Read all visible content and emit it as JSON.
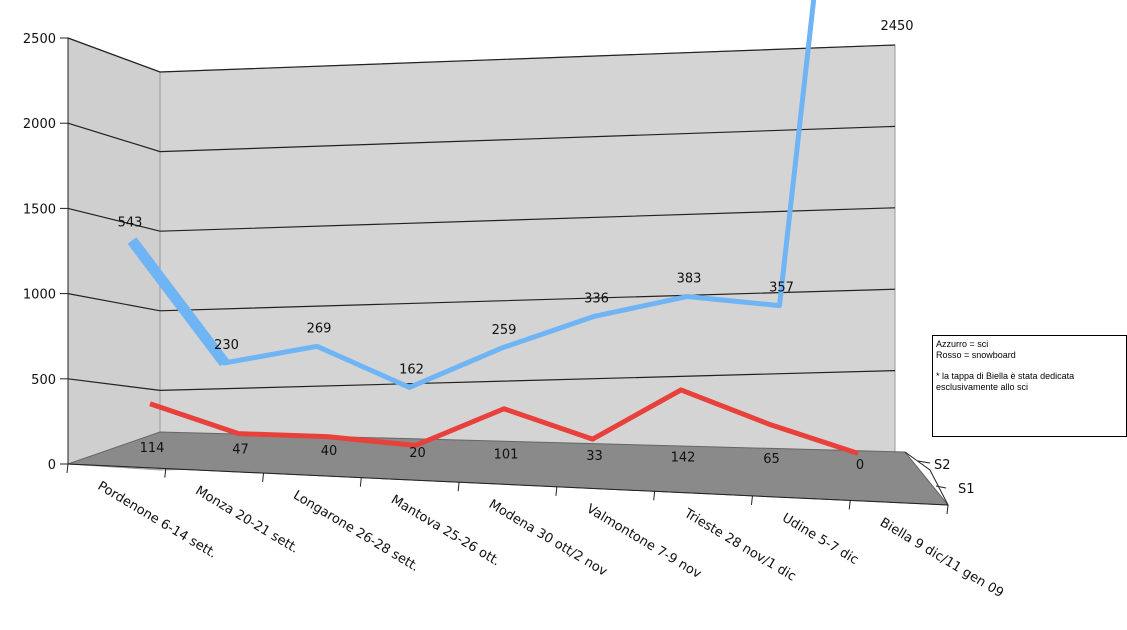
{
  "chart_data": {
    "type": "line",
    "title": "",
    "xlabel": "",
    "ylabel": "",
    "ylim": [
      0,
      2500
    ],
    "y_ticks": [
      "0",
      "500",
      "1000",
      "1500",
      "2000",
      "2500"
    ],
    "grid": true,
    "view": "3d",
    "categories": [
      "Pordenone 6-14 sett.",
      "Monza 20-21 sett.",
      "Longarone 26-28 sett.",
      "Mantova 25-26 ott.",
      "Modena  30 ott/2 nov",
      "Valmontone 7-9 nov",
      "Trieste 28 nov/1 dic",
      "Udine  5-7 dic",
      "Biella 9 dic/11 gen 09"
    ],
    "series": [
      {
        "name": "S2",
        "color": "#6fb4f5",
        "values": [
          543,
          230,
          269,
          162,
          259,
          336,
          383,
          357,
          2450
        ]
      },
      {
        "name": "S1",
        "color": "#e8413c",
        "values": [
          114,
          47,
          40,
          20,
          101,
          33,
          142,
          65,
          0
        ]
      }
    ],
    "legend_placement": "right",
    "legend_lines": [
      "Azzurro = sci",
      "Rosso = snowboard",
      "",
      "* la tappa di Biella è stata dedicata",
      "esclusivamente allo sci"
    ]
  }
}
